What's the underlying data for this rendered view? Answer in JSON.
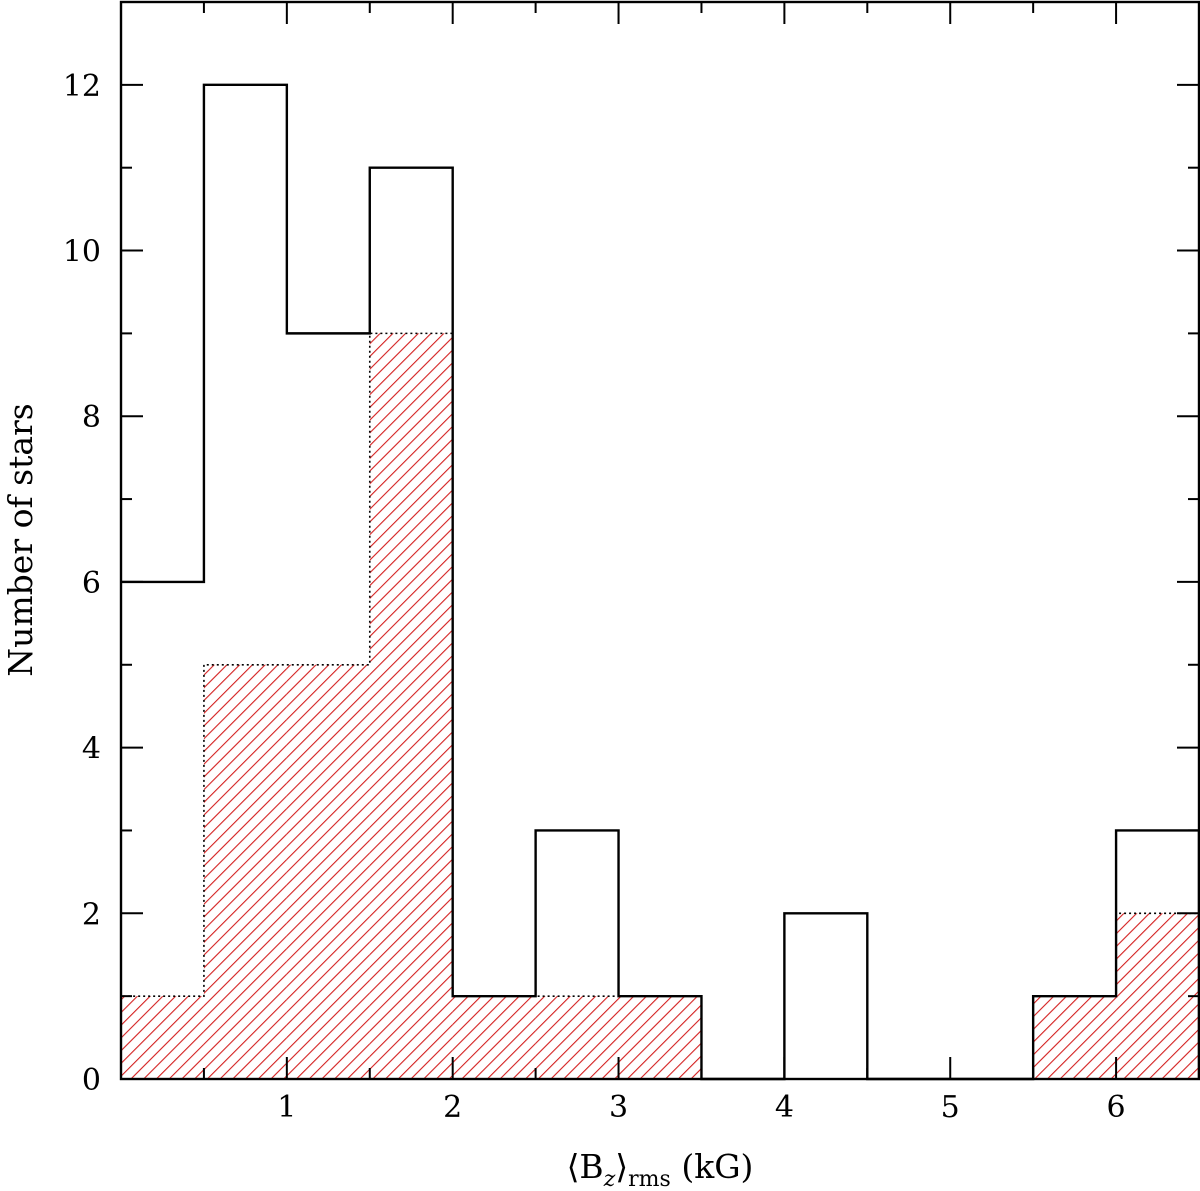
{
  "chart_data": {
    "type": "bar",
    "title": "",
    "xlabel": {
      "prefix": "⟨B",
      "subscript_z": "z",
      "close": "⟩",
      "subscript_rms": "rms",
      "unit": " (kG)"
    },
    "ylabel": "Number of stars",
    "xlim": [
      0,
      6.5
    ],
    "ylim": [
      0,
      13
    ],
    "bin_edges": [
      0,
      0.5,
      1.0,
      1.5,
      2.0,
      2.5,
      3.0,
      3.5,
      4.0,
      4.5,
      5.0,
      5.5,
      6.0,
      6.5
    ],
    "series": [
      {
        "style": "open-step",
        "color": "#000000",
        "values": [
          6,
          12,
          9,
          11,
          1,
          3,
          1,
          0,
          2,
          0,
          0,
          1,
          3
        ]
      },
      {
        "style": "hatched-fill",
        "color": "#d42020",
        "values": [
          1,
          5,
          5,
          9,
          1,
          1,
          1,
          0,
          0,
          0,
          0,
          1,
          2
        ]
      }
    ],
    "x_ticks": [
      {
        "value": 1,
        "label": "1"
      },
      {
        "value": 2,
        "label": "2"
      },
      {
        "value": 3,
        "label": "3"
      },
      {
        "value": 4,
        "label": "4"
      },
      {
        "value": 5,
        "label": "5"
      },
      {
        "value": 6,
        "label": "6"
      }
    ],
    "x_minor_ticks": [
      0.5,
      1.5,
      2.5,
      3.5,
      4.5,
      5.5
    ],
    "y_ticks": [
      {
        "value": 0,
        "label": "0"
      },
      {
        "value": 2,
        "label": "2"
      },
      {
        "value": 4,
        "label": "4"
      },
      {
        "value": 6,
        "label": "6"
      },
      {
        "value": 8,
        "label": "8"
      },
      {
        "value": 10,
        "label": "10"
      },
      {
        "value": 12,
        "label": "12"
      }
    ],
    "y_minor_ticks": [
      1,
      3,
      5,
      7,
      9,
      11
    ],
    "grid": false,
    "legend": "none"
  }
}
